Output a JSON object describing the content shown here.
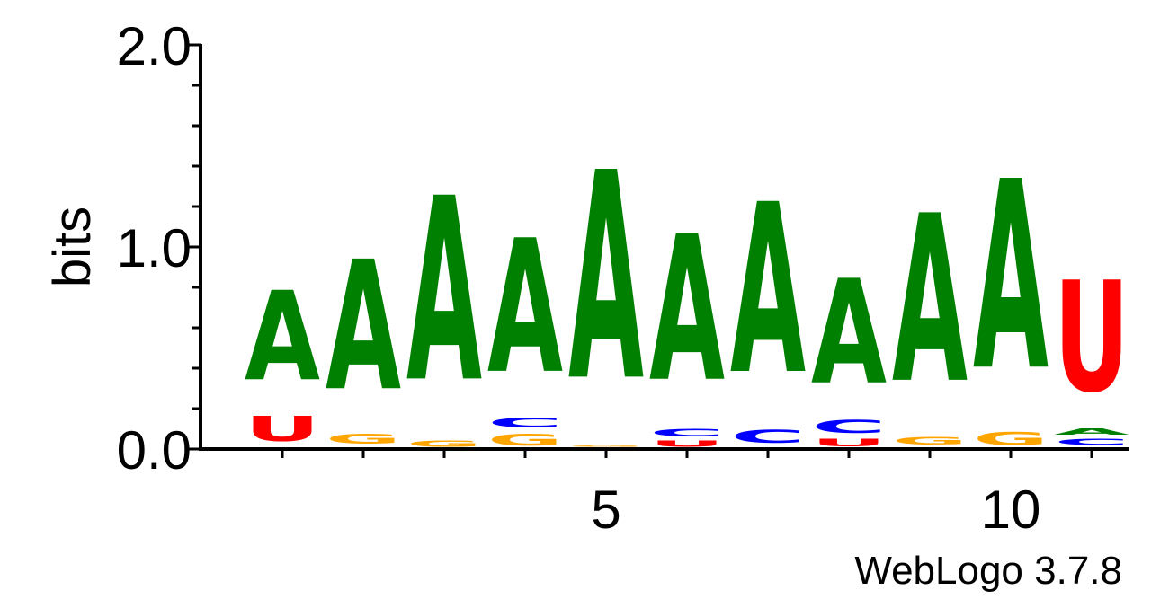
{
  "chart_data": {
    "type": "sequence-logo",
    "ylabel": "bits",
    "ylim": [
      0,
      2
    ],
    "y_ticks": [
      "0.0",
      "1.0",
      "2.0"
    ],
    "x_tick_labels": [
      {
        "position": 5,
        "label": "5"
      },
      {
        "position": 10,
        "label": "10"
      }
    ],
    "positions": [
      1,
      2,
      3,
      4,
      5,
      6,
      7,
      8,
      9,
      10,
      11
    ],
    "colors": {
      "A": "#008000",
      "C": "#0000ff",
      "G": "#ffa500",
      "U": "#ff0000"
    },
    "stacks": [
      [
        {
          "letter": "A",
          "bits": 0.0
        },
        {
          "letter": "C",
          "bits": 0.0
        },
        {
          "letter": "U",
          "bits": 0.2
        },
        {
          "letter": "A",
          "bits": 0.71
        }
      ],
      [
        {
          "letter": "C",
          "bits": 0.01
        },
        {
          "letter": "G",
          "bits": 0.08
        },
        {
          "letter": "A",
          "bits": 1.03
        }
      ],
      [
        {
          "letter": "G",
          "bits": 0.05
        },
        {
          "letter": "A",
          "bits": 1.46
        }
      ],
      [
        {
          "letter": "G",
          "bits": 0.09
        },
        {
          "letter": "C",
          "bits": 0.08
        },
        {
          "letter": "A",
          "bits": 1.06
        }
      ],
      [
        {
          "letter": "U",
          "bits": 0.01
        },
        {
          "letter": "G",
          "bits": 0.01
        },
        {
          "letter": "A",
          "bits": 1.65
        }
      ],
      [
        {
          "letter": "U",
          "bits": 0.05
        },
        {
          "letter": "C",
          "bits": 0.06
        },
        {
          "letter": "A",
          "bits": 1.16
        }
      ],
      [
        {
          "letter": "G",
          "bits": 0.01
        },
        {
          "letter": "C",
          "bits": 0.1
        },
        {
          "letter": "A",
          "bits": 1.35
        }
      ],
      [
        {
          "letter": "U",
          "bits": 0.06
        },
        {
          "letter": "C",
          "bits": 0.1
        },
        {
          "letter": "A",
          "bits": 0.83
        }
      ],
      [
        {
          "letter": "U",
          "bits": 0.01
        },
        {
          "letter": "G",
          "bits": 0.06
        },
        {
          "letter": "A",
          "bits": 1.33
        }
      ],
      [
        {
          "letter": "G",
          "bits": 0.1
        },
        {
          "letter": "A",
          "bits": 1.5
        }
      ],
      [
        {
          "letter": "G",
          "bits": 0.01
        },
        {
          "letter": "C",
          "bits": 0.05
        },
        {
          "letter": "A",
          "bits": 0.05
        },
        {
          "letter": "U",
          "bits": 0.88
        }
      ]
    ]
  },
  "footer": {
    "credit": "WebLogo 3.7.8"
  }
}
